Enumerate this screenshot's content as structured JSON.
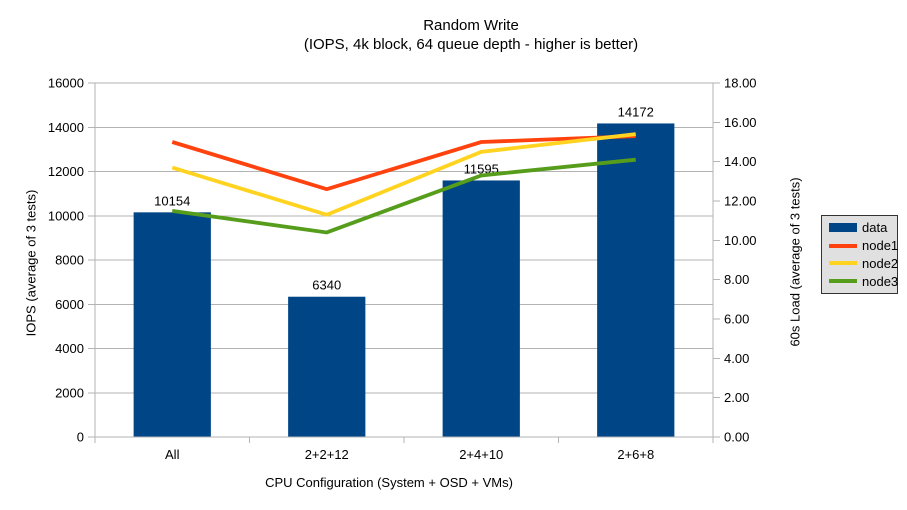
{
  "chart_data": {
    "type": "bar+line",
    "title": "Random Write",
    "subtitle": "(IOPS, 4k block, 64 queue depth - higher is better)",
    "categories": [
      "All",
      "2+2+12",
      "2+4+10",
      "2+6+8"
    ],
    "bar_series": {
      "name": "data",
      "color": "#004586",
      "axis": "left",
      "values": [
        10154,
        6340,
        11595,
        14172
      ],
      "data_labels": [
        "10154",
        "6340",
        "11595",
        "14172"
      ]
    },
    "line_series": [
      {
        "name": "node1",
        "color": "#FF420E",
        "axis": "right",
        "values": [
          15.0,
          12.6,
          15.0,
          15.3
        ]
      },
      {
        "name": "node2",
        "color": "#FFD320",
        "axis": "right",
        "values": [
          13.7,
          11.3,
          14.5,
          15.4
        ]
      },
      {
        "name": "node3",
        "color": "#579D1C",
        "axis": "right",
        "values": [
          11.5,
          10.4,
          13.3,
          14.1
        ]
      }
    ],
    "left_axis": {
      "title": "IOPS (average of 3 tests)",
      "min": 0,
      "max": 16000,
      "step": 2000,
      "tick_labels": [
        "0",
        "2000",
        "4000",
        "6000",
        "8000",
        "10000",
        "12000",
        "14000",
        "16000"
      ]
    },
    "right_axis": {
      "title": "60s Load (average of 3 tests)",
      "min": 0,
      "max": 18,
      "step": 2,
      "tick_labels": [
        "0.00",
        "2.00",
        "4.00",
        "6.00",
        "8.00",
        "10.00",
        "12.00",
        "14.00",
        "16.00",
        "18.00"
      ]
    },
    "x_axis": {
      "title": "CPU Configuration (System + OSD + VMs)"
    },
    "legend": {
      "position": "right",
      "items": [
        {
          "label": "data",
          "color": "#004586",
          "marker": "rect"
        },
        {
          "label": "node1",
          "color": "#FF420E",
          "marker": "line"
        },
        {
          "label": "node2",
          "color": "#FFD320",
          "marker": "line"
        },
        {
          "label": "node3",
          "color": "#579D1C",
          "marker": "line"
        }
      ]
    },
    "style": {
      "grid_color": "#b3b3b3",
      "axis_color": "#b3b3b3",
      "text_color": "#000000",
      "background": "#ffffff",
      "legend_bg": "#e0e0e0",
      "legend_border": "#333333",
      "grid": "horizontal-only"
    }
  }
}
